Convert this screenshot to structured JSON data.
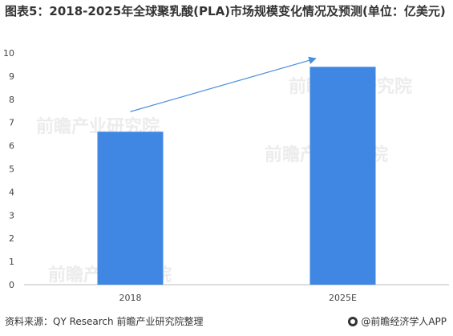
{
  "title": "图表5：2018-2025年全球聚乳酸(PLA)市场规模变化情况及预测(单位：亿美元)",
  "chart_data": {
    "type": "bar",
    "categories": [
      "2018",
      "2025E"
    ],
    "values": [
      6.6,
      9.4
    ],
    "ylim": [
      0,
      10
    ],
    "yticks": [
      0,
      1,
      2,
      3,
      4,
      5,
      6,
      7,
      8,
      9,
      10
    ],
    "xlabel": "",
    "ylabel": "",
    "grid": false,
    "bar_color": "#3f87e3",
    "annotation": "upward-arrow"
  },
  "footer": {
    "source": "资料来源：QY Research 前瞻产业研究院整理",
    "brand": "@前瞻经济学人APP"
  },
  "watermark": "前瞻产业研究院"
}
